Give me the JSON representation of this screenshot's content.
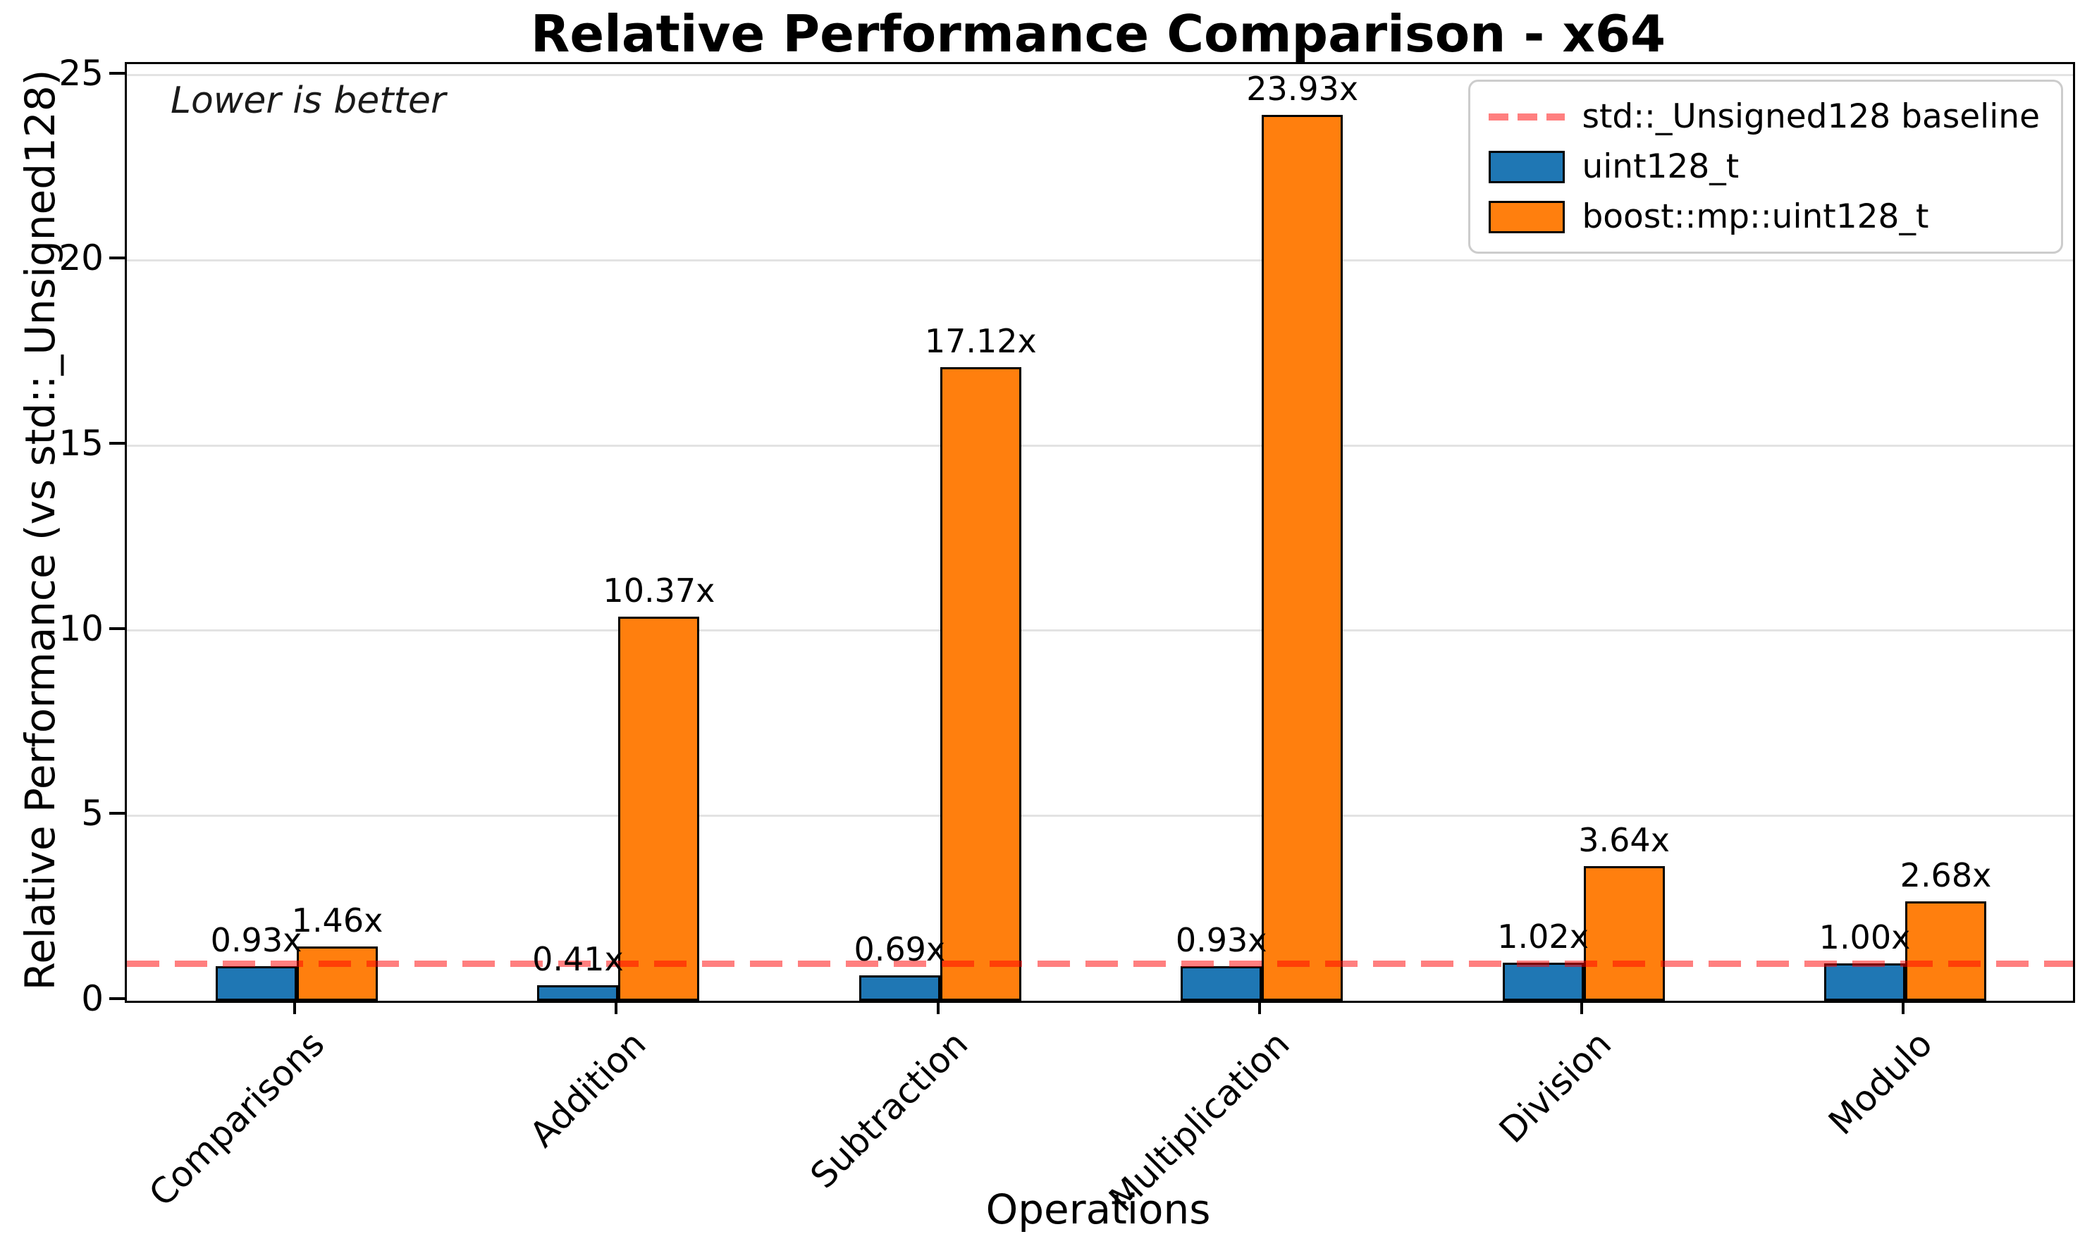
{
  "title": "Relative Performance Comparison - x64",
  "annotation": "Lower is better",
  "xlabel": "Operations",
  "ylabel": "Relative Performance (vs std::_Unsigned128)",
  "legend": {
    "baseline_label": "std::_Unsigned128 baseline",
    "series_labels": [
      "uint128_t",
      "boost::mp::uint128_t"
    ]
  },
  "chart_data": {
    "type": "bar",
    "title": "Relative Performance Comparison - x64",
    "xlabel": "Operations",
    "ylabel": "Relative Performance (vs std::_Unsigned128)",
    "categories": [
      "Comparisons",
      "Addition",
      "Subtraction",
      "Multiplication",
      "Division",
      "Modulo"
    ],
    "series": [
      {
        "name": "uint128_t",
        "color": "#1f77b4",
        "values": [
          0.93,
          0.41,
          0.69,
          0.93,
          1.02,
          1.0
        ],
        "labels": [
          "0.93x",
          "0.41x",
          "0.69x",
          "0.93x",
          "1.02x",
          "1.00x"
        ]
      },
      {
        "name": "boost::mp::uint128_t",
        "color": "#ff7f0e",
        "values": [
          1.46,
          10.37,
          17.12,
          23.93,
          3.64,
          2.68
        ],
        "labels": [
          "1.46x",
          "10.37x",
          "17.12x",
          "23.93x",
          "3.64x",
          "2.68x"
        ]
      }
    ],
    "baseline": {
      "value": 1.0,
      "label": "std::_Unsigned128 baseline",
      "color_rgba": "rgba(255,0,0,0.5)"
    },
    "yticks": [
      0,
      5,
      10,
      15,
      20,
      25
    ],
    "ylim": [
      0,
      25.3
    ],
    "grid": true,
    "gridcolor": "#e3e3e3",
    "legend_position": "upper right",
    "annotation": "Lower is better"
  }
}
